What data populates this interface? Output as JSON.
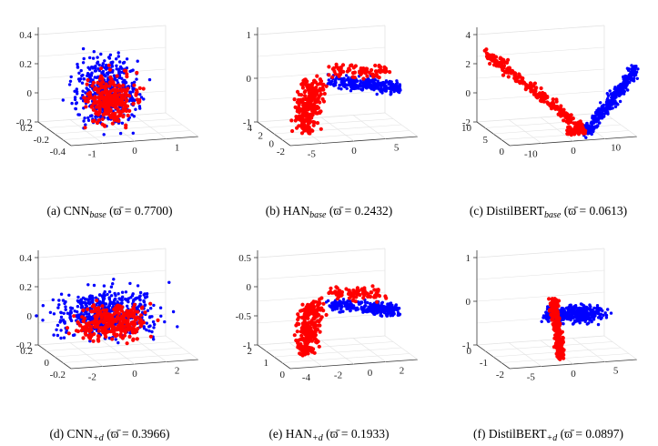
{
  "colors": {
    "class_a": "#ff0000",
    "class_b": "#0000ff",
    "axis": "#3a3a3a",
    "grid": "#e2e2e2"
  },
  "chart_data": [
    {
      "type": "scatter",
      "id": "cnn_base",
      "caption": {
        "prefix": "(a) CNN",
        "sub": "base",
        "metric": "(ϖ̄ = 0.7700)"
      },
      "zticks": [
        "0.4",
        "0.2",
        "0",
        "-0.2"
      ],
      "xticks": [
        "-1",
        "0",
        "1"
      ],
      "yticks": [
        "-0.4",
        "-0.2",
        "0.2"
      ],
      "shape": "blob",
      "series": [
        {
          "name": "class_a",
          "color": "#ff0000"
        },
        {
          "name": "class_b",
          "color": "#0000ff"
        }
      ]
    },
    {
      "type": "scatter",
      "id": "han_base",
      "caption": {
        "prefix": "(b) HAN",
        "sub": "base",
        "metric": "(ϖ̄ = 0.2432)"
      },
      "zticks": [
        "1",
        "0",
        "-1"
      ],
      "xticks": [
        "-5",
        "0",
        "5"
      ],
      "yticks": [
        "-2",
        "0",
        "2",
        "4"
      ],
      "shape": "han",
      "series": [
        {
          "name": "class_a",
          "color": "#ff0000"
        },
        {
          "name": "class_b",
          "color": "#0000ff"
        }
      ]
    },
    {
      "type": "scatter",
      "id": "distilbert_base",
      "caption": {
        "prefix": "(c) DistilBERT",
        "sub": "base",
        "metric": "(ϖ̄ = 0.0613)"
      },
      "zticks": [
        "4",
        "2",
        "0",
        "-2"
      ],
      "xticks": [
        "-10",
        "0",
        "10"
      ],
      "yticks": [
        "0",
        "5",
        "10"
      ],
      "shape": "vshape",
      "series": [
        {
          "name": "class_a",
          "color": "#ff0000"
        },
        {
          "name": "class_b",
          "color": "#0000ff"
        }
      ]
    },
    {
      "type": "scatter",
      "id": "cnn_d",
      "caption": {
        "prefix": "(d) CNN",
        "sub": "+d",
        "metric": "(ϖ̄ = 0.3966)"
      },
      "zticks": [
        "0.4",
        "0.2",
        "0",
        "-0.2"
      ],
      "xticks": [
        "-2",
        "0",
        "2"
      ],
      "yticks": [
        "-0.2",
        "0",
        "0.2"
      ],
      "shape": "blob2",
      "series": [
        {
          "name": "class_a",
          "color": "#ff0000"
        },
        {
          "name": "class_b",
          "color": "#0000ff"
        }
      ]
    },
    {
      "type": "scatter",
      "id": "han_d",
      "caption": {
        "prefix": "(e) HAN",
        "sub": "+d",
        "metric": "(ϖ̄ = 0.1933)"
      },
      "zticks": [
        "0.5",
        "0",
        "-0.5",
        "-1"
      ],
      "xticks": [
        "-4",
        "-2",
        "0",
        "2"
      ],
      "yticks": [
        "0",
        "1",
        "2"
      ],
      "shape": "han2",
      "series": [
        {
          "name": "class_a",
          "color": "#ff0000"
        },
        {
          "name": "class_b",
          "color": "#0000ff"
        }
      ]
    },
    {
      "type": "scatter",
      "id": "distilbert_d",
      "caption": {
        "prefix": "(f) DistilBERT",
        "sub": "+d",
        "metric": "(ϖ̄ = 0.0897)"
      },
      "zticks": [
        "1",
        "0",
        "-1"
      ],
      "xticks": [
        "-5",
        "0",
        "5"
      ],
      "yticks": [
        "-2",
        "-1",
        "0"
      ],
      "shape": "lshape",
      "series": [
        {
          "name": "class_a",
          "color": "#ff0000"
        },
        {
          "name": "class_b",
          "color": "#0000ff"
        }
      ]
    }
  ]
}
